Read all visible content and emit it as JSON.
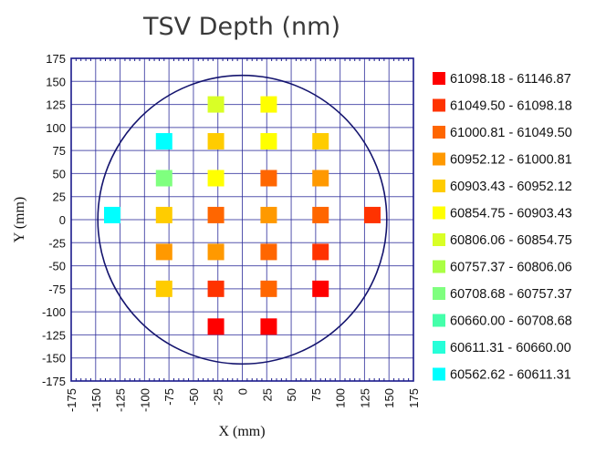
{
  "chart_data": {
    "type": "scatter",
    "title": "TSV Depth (nm)",
    "xlabel": "X (mm)",
    "ylabel": "Y (mm)",
    "xlim": [
      -175,
      175
    ],
    "ylim": [
      -175,
      175
    ],
    "xticks": [
      "-175",
      "-150",
      "-125",
      "-100",
      "-75",
      "-50",
      "-25",
      "0",
      "25",
      "50",
      "75",
      "100",
      "125",
      "150",
      "175"
    ],
    "yticks": [
      "175",
      "150",
      "125",
      "100",
      "75",
      "50",
      "25",
      "0",
      "-25",
      "-50",
      "-75",
      "-100",
      "-125",
      "-150",
      "-175"
    ],
    "grid": true,
    "wafer_radius_mm": 152,
    "legend_position": "right",
    "legend": [
      {
        "label": "61098.18 - 61146.87",
        "color": "#ff0000"
      },
      {
        "label": "61049.50 - 61098.18",
        "color": "#ff3300"
      },
      {
        "label": "61000.81 - 61049.50",
        "color": "#ff6600"
      },
      {
        "label": "60952.12 - 61000.81",
        "color": "#ff9900"
      },
      {
        "label": "60903.43 - 60952.12",
        "color": "#ffcc00"
      },
      {
        "label": "60854.75 - 60903.43",
        "color": "#ffff00"
      },
      {
        "label": "60806.06 - 60854.75",
        "color": "#d9ff26"
      },
      {
        "label": "60757.37 - 60806.06",
        "color": "#aaff44"
      },
      {
        "label": "60708.68 - 60757.37",
        "color": "#7fff7f"
      },
      {
        "label": "60660.00 - 60708.68",
        "color": "#44ffaa"
      },
      {
        "label": "60611.31 - 60660.00",
        "color": "#26ffd9"
      },
      {
        "label": "60562.62 - 60611.31",
        "color": "#00ffff"
      }
    ],
    "points": [
      {
        "x": -27,
        "y": 125,
        "bin": 6
      },
      {
        "x": 27,
        "y": 125,
        "bin": 5
      },
      {
        "x": -80,
        "y": 85,
        "bin": 11
      },
      {
        "x": -27,
        "y": 85,
        "bin": 4
      },
      {
        "x": 27,
        "y": 85,
        "bin": 5
      },
      {
        "x": 80,
        "y": 85,
        "bin": 4
      },
      {
        "x": -80,
        "y": 45,
        "bin": 8
      },
      {
        "x": -27,
        "y": 45,
        "bin": 5
      },
      {
        "x": 27,
        "y": 45,
        "bin": 2
      },
      {
        "x": 80,
        "y": 45,
        "bin": 3
      },
      {
        "x": -133,
        "y": 5,
        "bin": 11
      },
      {
        "x": -80,
        "y": 5,
        "bin": 4
      },
      {
        "x": -27,
        "y": 5,
        "bin": 2
      },
      {
        "x": 27,
        "y": 5,
        "bin": 3
      },
      {
        "x": 80,
        "y": 5,
        "bin": 2
      },
      {
        "x": 133,
        "y": 5,
        "bin": 1
      },
      {
        "x": -80,
        "y": -35,
        "bin": 3
      },
      {
        "x": -27,
        "y": -35,
        "bin": 3
      },
      {
        "x": 27,
        "y": -35,
        "bin": 2
      },
      {
        "x": 80,
        "y": -35,
        "bin": 1
      },
      {
        "x": -80,
        "y": -75,
        "bin": 4
      },
      {
        "x": -27,
        "y": -75,
        "bin": 1
      },
      {
        "x": 27,
        "y": -75,
        "bin": 2
      },
      {
        "x": 80,
        "y": -75,
        "bin": 0
      },
      {
        "x": -27,
        "y": -116,
        "bin": 0
      },
      {
        "x": 27,
        "y": -116,
        "bin": 0
      }
    ]
  },
  "colors": {
    "frame": "#1a1a8c",
    "grid": "#2a2a9a",
    "wafer": "#14146e"
  }
}
